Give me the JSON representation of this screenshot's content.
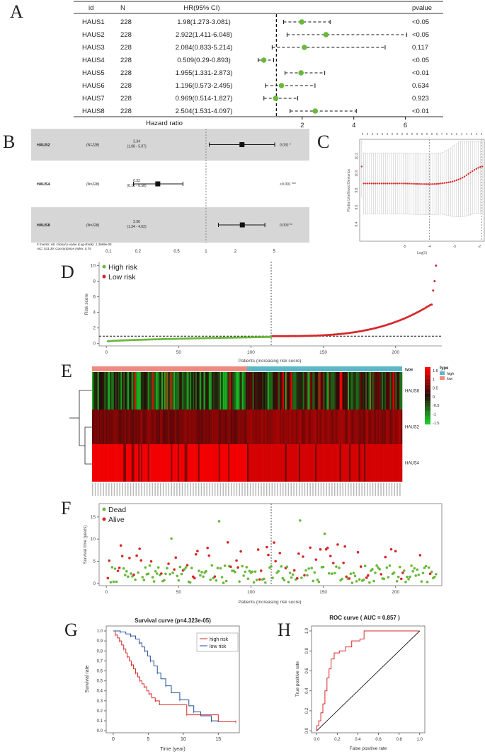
{
  "panel_letters": [
    "A",
    "B",
    "C",
    "D",
    "E",
    "F",
    "G",
    "H"
  ],
  "chart_data": [
    {
      "panel": "A",
      "type": "forest",
      "headers": {
        "id": "id",
        "n": "N",
        "hr": "HR(95% CI)",
        "p": "pvalue"
      },
      "rows": [
        {
          "id": "HAUS1",
          "n": "228",
          "hr_text": "1.98(1.273-3.081)",
          "hr": 1.98,
          "lo": 1.273,
          "hi": 3.081,
          "p": "<0.05"
        },
        {
          "id": "HAUS2",
          "n": "228",
          "hr_text": "2.922(1.411-6.048)",
          "hr": 2.922,
          "lo": 1.411,
          "hi": 6.048,
          "p": "<0.05"
        },
        {
          "id": "HAUS3",
          "n": "228",
          "hr_text": "2.084(0.833-5.214)",
          "hr": 2.084,
          "lo": 0.833,
          "hi": 5.214,
          "p": "0.117"
        },
        {
          "id": "HAUS4",
          "n": "228",
          "hr_text": "0.509(0.29-0.893)",
          "hr": 0.509,
          "lo": 0.29,
          "hi": 0.893,
          "p": "<0.05"
        },
        {
          "id": "HAUS5",
          "n": "228",
          "hr_text": "1.955(1.331-2.873)",
          "hr": 1.955,
          "lo": 1.331,
          "hi": 2.873,
          "p": "<0.01"
        },
        {
          "id": "HAUS6",
          "n": "228",
          "hr_text": "1.196(0.573-2.495)",
          "hr": 1.196,
          "lo": 0.573,
          "hi": 2.495,
          "p": "0.634"
        },
        {
          "id": "HAUS7",
          "n": "228",
          "hr_text": "0.969(0.514-1.827)",
          "hr": 0.969,
          "lo": 0.514,
          "hi": 1.827,
          "p": "0.923"
        },
        {
          "id": "HAUS8",
          "n": "228",
          "hr_text": "2.504(1.531-4.097)",
          "hr": 2.504,
          "lo": 1.531,
          "hi": 4.097,
          "p": "<0.01"
        }
      ],
      "xlabel": "Hazard ratio",
      "xticks": [
        2,
        4,
        6
      ],
      "xlim": [
        0,
        7
      ],
      "ref_line": 1,
      "point_color": "#6ab83c"
    },
    {
      "panel": "B",
      "type": "forest",
      "scale": "log",
      "rows": [
        {
          "id": "HAUS2",
          "n_text": "(N=228)",
          "hr_top": "2.34",
          "ci_text": "(1.08 - 5.07)",
          "hr": 2.34,
          "lo": 1.08,
          "hi": 5.07,
          "p": "0.031 *"
        },
        {
          "id": "HAUS4",
          "n_text": "(N=228)",
          "hr_top": "0.32",
          "ci_text": "(0.18 - 0.58)",
          "hr": 0.32,
          "lo": 0.18,
          "hi": 0.58,
          "p": "<0.001 ***"
        },
        {
          "id": "HAUS8",
          "n_text": "(N=228)",
          "hr_top": "2.36",
          "ci_text": "(1.34 - 4.02)",
          "hr": 2.36,
          "lo": 1.34,
          "hi": 4.02,
          "p": "0.003 **"
        }
      ],
      "xticks": [
        0.1,
        0.2,
        0.5,
        1,
        2,
        5
      ],
      "xtick_labels": [
        "0.1",
        "0.2",
        "0.5",
        "1",
        "2",
        "5"
      ],
      "ref_line": 1,
      "footnote_1": "# Events: 66; Global p-value (Log-Rank): 1.3669e-05",
      "footnote_2": "AIC: 531.39; Concordance Index: 0.75"
    },
    {
      "panel": "C",
      "type": "scatter",
      "xlabel": "Log(λ)",
      "ylabel": "Partial Likelihood Deviance",
      "xlim": [
        -6.8,
        -1.8
      ],
      "ylim": [
        9.2,
        10.4
      ],
      "xticks": [
        -5,
        -4,
        -3,
        -2
      ],
      "yticks": [
        9.4,
        9.6,
        9.8,
        10.0,
        10.2
      ],
      "top_ticks": [
        "8",
        "8",
        "8",
        "8",
        "8",
        "8",
        "8",
        "8",
        "8",
        "8",
        "8",
        "8",
        "8",
        "8",
        "8",
        "8",
        "7",
        "6",
        "6",
        "6",
        "4",
        "4",
        "5",
        "2",
        "0"
      ],
      "vlines": [
        -4,
        -1.9
      ],
      "curve": [
        [
          -6.7,
          9.88
        ],
        [
          -6.0,
          9.88
        ],
        [
          -5.0,
          9.88
        ],
        [
          -4.5,
          9.875
        ],
        [
          -4.0,
          9.872
        ],
        [
          -3.7,
          9.875
        ],
        [
          -3.4,
          9.885
        ],
        [
          -3.1,
          9.9
        ],
        [
          -2.8,
          9.93
        ],
        [
          -2.6,
          9.96
        ],
        [
          -2.4,
          10.0
        ],
        [
          -2.2,
          10.04
        ],
        [
          -2.0,
          10.07
        ],
        [
          -1.9,
          10.08
        ]
      ]
    },
    {
      "panel": "D",
      "type": "scatter",
      "xlabel": "Patients (increasing risk socre)",
      "ylabel": "Risk score",
      "xlim": [
        -5,
        232
      ],
      "ylim": [
        -0.3,
        10.5
      ],
      "xticks": [
        0,
        50,
        100,
        150,
        200
      ],
      "yticks": [
        0,
        2,
        4,
        6,
        8,
        10
      ],
      "cutoff_x": 114,
      "cutoff_y": 0.95,
      "legend": [
        "High risk",
        "Low  risk"
      ],
      "low_color": "#6ab83c",
      "high_color": "#d62728",
      "n_low": 114,
      "n_total": 228,
      "tail_values": [
        5.0,
        6.8,
        8.0,
        10.0
      ]
    },
    {
      "panel": "E",
      "type": "heatmap",
      "genes": [
        "HAUS8",
        "HAUS2",
        "HAUS4"
      ],
      "annotation_label": "type",
      "legend_title": "type",
      "legend_items": [
        "high",
        "low"
      ],
      "legend_colors": {
        "high": "#5ab8c8",
        "low": "#f08a80"
      },
      "color_scale_ticks": [
        "1.5",
        "1",
        "0.5",
        "0",
        "-0.5",
        "-1",
        "-1.5"
      ],
      "n_low": 114,
      "n_total": 228
    },
    {
      "panel": "F",
      "type": "scatter",
      "xlabel": "Patients (increasing risk socre)",
      "ylabel": "Survival time (years)",
      "xlim": [
        -5,
        232
      ],
      "ylim": [
        -0.5,
        18
      ],
      "xticks": [
        0,
        50,
        100,
        150,
        200
      ],
      "yticks": [
        0,
        5,
        10,
        15
      ],
      "cutoff_x": 114,
      "legend": [
        "Dead",
        "Alive"
      ],
      "dead_color": "#6ab83c",
      "alive_color": "#d62728",
      "n_total": 228
    },
    {
      "panel": "G",
      "type": "line",
      "title": "Survival curve (p=4.323e-05)",
      "xlabel": "Time (year)",
      "ylabel": "Survival rate",
      "xlim": [
        -1,
        18
      ],
      "ylim": [
        -0.02,
        1.05
      ],
      "xticks": [
        0,
        5,
        10,
        15
      ],
      "yticks": [
        0.0,
        0.1,
        0.2,
        0.3,
        0.4,
        0.5,
        0.6,
        0.7,
        0.8,
        0.9,
        1.0
      ],
      "series": [
        {
          "name": "high risk",
          "color": "#d62728",
          "steps": [
            [
              0,
              1.0
            ],
            [
              0.3,
              0.96
            ],
            [
              0.6,
              0.93
            ],
            [
              0.9,
              0.9
            ],
            [
              1.2,
              0.86
            ],
            [
              1.5,
              0.82
            ],
            [
              1.8,
              0.78
            ],
            [
              2.0,
              0.74
            ],
            [
              2.3,
              0.7
            ],
            [
              2.6,
              0.66
            ],
            [
              2.9,
              0.62
            ],
            [
              3.2,
              0.58
            ],
            [
              3.5,
              0.54
            ],
            [
              3.8,
              0.5
            ],
            [
              4.1,
              0.47
            ],
            [
              4.4,
              0.44
            ],
            [
              4.8,
              0.4
            ],
            [
              5.1,
              0.37
            ],
            [
              5.5,
              0.33
            ],
            [
              6.0,
              0.3
            ],
            [
              6.6,
              0.26
            ],
            [
              10.5,
              0.16
            ],
            [
              15.0,
              0.09
            ],
            [
              17.5,
              0.09
            ]
          ]
        },
        {
          "name": "low risk",
          "color": "#1f4e9c",
          "steps": [
            [
              0,
              1.0
            ],
            [
              1.0,
              0.99
            ],
            [
              1.8,
              0.97
            ],
            [
              2.5,
              0.95
            ],
            [
              3.2,
              0.92
            ],
            [
              3.7,
              0.88
            ],
            [
              4.1,
              0.84
            ],
            [
              4.5,
              0.8
            ],
            [
              4.9,
              0.75
            ],
            [
              5.3,
              0.7
            ],
            [
              5.8,
              0.65
            ],
            [
              6.3,
              0.58
            ],
            [
              6.8,
              0.52
            ],
            [
              7.5,
              0.45
            ],
            [
              8.3,
              0.38
            ],
            [
              9.5,
              0.31
            ],
            [
              10.8,
              0.25
            ],
            [
              11.5,
              0.19
            ],
            [
              12.5,
              0.15
            ],
            [
              14.0,
              0.1
            ],
            [
              15.0,
              0.1
            ]
          ]
        }
      ]
    },
    {
      "panel": "H",
      "type": "line",
      "title": "ROC curve ( AUC =  0.857 )",
      "xlabel": "False positive rate",
      "ylabel": "True positive rate",
      "xlim": [
        -0.05,
        1.05
      ],
      "ylim": [
        -0.02,
        1.05
      ],
      "xticks": [
        0.0,
        0.2,
        0.4,
        0.6,
        0.8,
        1.0
      ],
      "yticks": [
        0.0,
        0.2,
        0.4,
        0.6,
        0.8,
        1.0
      ],
      "series": [
        {
          "name": "",
          "color": "#d62728",
          "points": [
            [
              0,
              0
            ],
            [
              0,
              0.05
            ],
            [
              0.02,
              0.05
            ],
            [
              0.02,
              0.1
            ],
            [
              0.04,
              0.1
            ],
            [
              0.04,
              0.18
            ],
            [
              0.06,
              0.18
            ],
            [
              0.06,
              0.27
            ],
            [
              0.08,
              0.27
            ],
            [
              0.08,
              0.4
            ],
            [
              0.1,
              0.4
            ],
            [
              0.1,
              0.53
            ],
            [
              0.12,
              0.53
            ],
            [
              0.12,
              0.62
            ],
            [
              0.14,
              0.62
            ],
            [
              0.14,
              0.72
            ],
            [
              0.17,
              0.72
            ],
            [
              0.17,
              0.78
            ],
            [
              0.22,
              0.78
            ],
            [
              0.22,
              0.8
            ],
            [
              0.28,
              0.8
            ],
            [
              0.28,
              0.84
            ],
            [
              0.34,
              0.84
            ],
            [
              0.34,
              0.9
            ],
            [
              0.42,
              0.9
            ],
            [
              0.42,
              0.92
            ],
            [
              0.46,
              0.92
            ],
            [
              0.46,
              1.0
            ],
            [
              1.0,
              1.0
            ]
          ]
        },
        {
          "name": "",
          "color": "#000000",
          "points": [
            [
              0,
              0
            ],
            [
              1,
              1
            ]
          ]
        }
      ]
    }
  ]
}
